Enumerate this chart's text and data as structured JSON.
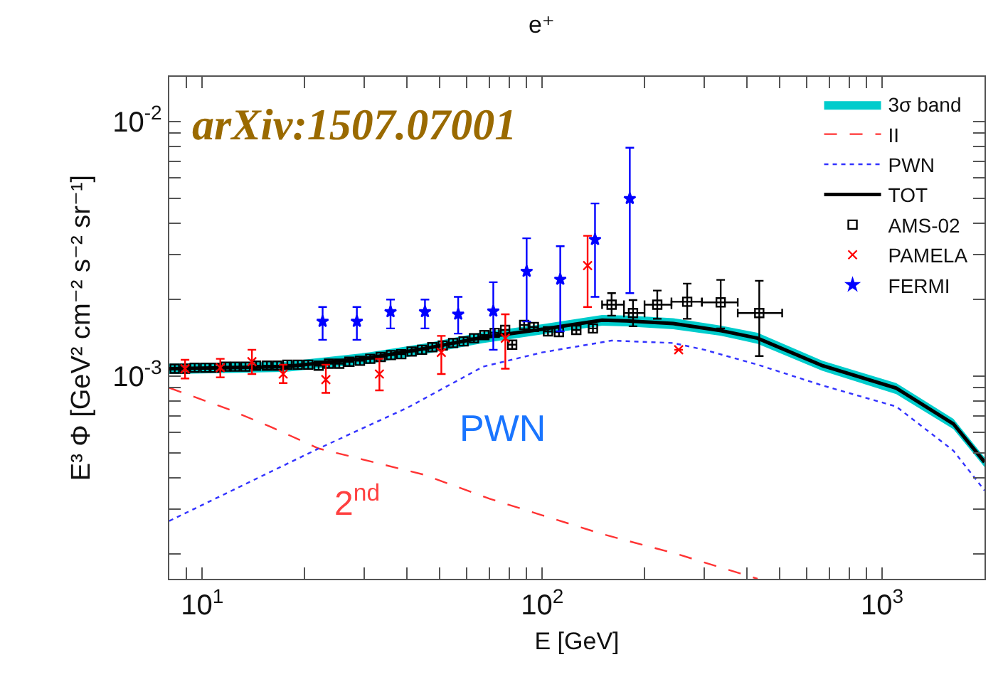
{
  "chart_data": {
    "type": "line",
    "title": "e⁺",
    "xlabel": "E [GeV]",
    "ylabel": "E³ Φ [GeV² cm⁻² s⁻² sr⁻¹]",
    "log": "xy",
    "grid": false,
    "legend": "top right",
    "xlim": [
      8,
      2000
    ],
    "xticks": [
      {
        "value": 9,
        "label": null
      },
      {
        "value": 10,
        "label": "10$^{1}$"
      },
      {
        "value": 20,
        "label": null
      },
      {
        "value": 30,
        "label": null
      },
      {
        "value": 40,
        "label": null
      },
      {
        "value": 50,
        "label": null
      },
      {
        "value": 60,
        "label": null
      },
      {
        "value": 70,
        "label": null
      },
      {
        "value": 80,
        "label": null
      },
      {
        "value": 90,
        "label": null
      },
      {
        "value": 100,
        "label": "10$^{2}$"
      },
      {
        "value": 200,
        "label": null
      },
      {
        "value": 300,
        "label": null
      },
      {
        "value": 400,
        "label": null
      },
      {
        "value": 500,
        "label": null
      },
      {
        "value": 600,
        "label": null
      },
      {
        "value": 700,
        "label": null
      },
      {
        "value": 800,
        "label": null
      },
      {
        "value": 900,
        "label": null
      },
      {
        "value": 1000,
        "label": "10$^{3}$"
      }
    ],
    "ylim": [
      0.00016,
      0.015
    ],
    "yticks": [
      {
        "value": 0.0002,
        "label": null
      },
      {
        "value": 0.0003,
        "label": null
      },
      {
        "value": 0.0004,
        "label": null
      },
      {
        "value": 0.0005,
        "label": null
      },
      {
        "value": 0.0006,
        "label": null
      },
      {
        "value": 0.0007,
        "label": null
      },
      {
        "value": 0.0008,
        "label": null
      },
      {
        "value": 0.0009,
        "label": null
      },
      {
        "value": 0.001,
        "label": "10$^{-3}$"
      },
      {
        "value": 0.002,
        "label": null
      },
      {
        "value": 0.003,
        "label": null
      },
      {
        "value": 0.004,
        "label": null
      },
      {
        "value": 0.005,
        "label": null
      },
      {
        "value": 0.006,
        "label": null
      },
      {
        "value": 0.007,
        "label": null
      },
      {
        "value": 0.008,
        "label": null
      },
      {
        "value": 0.009,
        "label": null
      },
      {
        "value": 0.01,
        "label": "10$^{-2}$"
      }
    ],
    "series": [
      {
        "name": "3σ band",
        "type": "area",
        "color": "#00cccc",
        "x": [
          8,
          17.5,
          31,
          46,
          67,
          100,
          150,
          177,
          243,
          336,
          430,
          667,
          1100,
          1620,
          2000
        ],
        "values": [
          null,
          null,
          null,
          null,
          null,
          null,
          null,
          null,
          null,
          null,
          null,
          null,
          null,
          null,
          null
        ],
        "lower": [
          0.00102,
          0.00104,
          0.00112,
          0.00123,
          0.00135,
          0.00146,
          0.00158,
          0.00157,
          0.00153,
          0.00144,
          0.00134,
          0.00105,
          0.00085,
          0.00062,
          0.00044
        ],
        "upper": [
          0.00112,
          0.00114,
          0.00124,
          0.00135,
          0.00149,
          0.0016,
          0.00174,
          0.00173,
          0.00169,
          0.00158,
          0.00148,
          0.00115,
          0.00094,
          0.00068,
          0.00048
        ]
      },
      {
        "name": "II",
        "color": "#ff3333",
        "line_style": "dashed",
        "marker": "none",
        "x": [
          8,
          12,
          16,
          22,
          28,
          45,
          70,
          150,
          250,
          430
        ],
        "values": [
          0.0009,
          0.00074,
          0.00063,
          0.00052,
          0.00048,
          0.00041,
          0.00033,
          0.00024,
          0.0002,
          0.00016
        ]
      },
      {
        "name": "PWN",
        "color": "#3333ff",
        "line_style": "dotted",
        "marker": "none",
        "x": [
          8,
          22,
          40,
          67,
          100,
          160,
          243,
          300,
          430,
          667,
          1100,
          1620,
          2000
        ],
        "values": [
          0.00027,
          0.00052,
          0.00075,
          0.00109,
          0.00124,
          0.00138,
          0.00135,
          0.00127,
          0.00111,
          0.00092,
          0.00076,
          0.00051,
          0.000356
        ]
      },
      {
        "name": "TOT",
        "color": "#000000",
        "line_style": "solid",
        "marker": "none",
        "x": [
          8,
          17.5,
          31,
          46,
          67,
          100,
          150,
          177,
          243,
          336,
          430,
          667,
          1100,
          1620,
          2000
        ],
        "values": [
          0.00107,
          0.00109,
          0.00118,
          0.00129,
          0.00142,
          0.00153,
          0.00166,
          0.00165,
          0.00161,
          0.00151,
          0.00141,
          0.0011,
          0.000898,
          0.00065,
          0.00046
        ]
      },
      {
        "name": "AMS-02",
        "type": "scatter",
        "color": "#000000",
        "marker": "square",
        "x": [
          8.3,
          8.9,
          9.5,
          10.2,
          10.9,
          11.7,
          12.5,
          13.4,
          14.4,
          15.5,
          16.6,
          17.8,
          19.1,
          20.5,
          22,
          23.6,
          25.3,
          27.1,
          29.1,
          31.2,
          33.5,
          35.9,
          38.5,
          41.3,
          44.3,
          47.5,
          51,
          54.7,
          58.7,
          63,
          67.6,
          72.5,
          77.8,
          81.6,
          88.5,
          94.5,
          104,
          112,
          126,
          141,
          160,
          185,
          218,
          267,
          335,
          435
        ],
        "values": [
          0.00107,
          0.00107,
          0.00108,
          0.00108,
          0.00108,
          0.00109,
          0.00109,
          0.00109,
          0.0011,
          0.0011,
          0.0011,
          0.00111,
          0.00111,
          0.00111,
          0.0011,
          0.00112,
          0.00112,
          0.00114,
          0.00115,
          0.00117,
          0.00119,
          0.00121,
          0.00122,
          0.00125,
          0.00127,
          0.0013,
          0.00132,
          0.00135,
          0.00137,
          0.00141,
          0.00145,
          0.00148,
          0.00152,
          0.00133,
          0.00159,
          0.00156,
          0.0015,
          0.00149,
          0.00152,
          0.00154,
          0.00191,
          0.00177,
          0.00191,
          0.00196,
          0.00195,
          0.00177
        ],
        "errors": [
          null,
          null,
          null,
          null,
          null,
          null,
          null,
          null,
          null,
          null,
          null,
          null,
          null,
          null,
          null,
          null,
          null,
          null,
          null,
          null,
          null,
          null,
          null,
          null,
          null,
          null,
          null,
          null,
          null,
          null,
          null,
          null,
          null,
          null,
          null,
          null,
          null,
          null,
          null,
          null,
          [
            0.00173,
            0.00212
          ],
          [
            0.00157,
            0.00199
          ],
          [
            0.00168,
            0.00217
          ],
          [
            0.00168,
            0.00231
          ],
          [
            0.00154,
            0.00239
          ],
          [
            0.0012,
            0.00237
          ]
        ],
        "xerrors": [
          null,
          null,
          null,
          null,
          null,
          null,
          null,
          null,
          null,
          null,
          null,
          null,
          null,
          null,
          null,
          null,
          null,
          null,
          null,
          null,
          null,
          null,
          null,
          null,
          null,
          null,
          null,
          null,
          null,
          null,
          null,
          null,
          null,
          null,
          null,
          null,
          null,
          null,
          null,
          null,
          [
            150,
            174
          ],
          [
            174,
            200
          ],
          [
            200,
            240
          ],
          [
            240,
            295
          ],
          [
            295,
            376
          ],
          [
            376,
            508
          ]
        ]
      },
      {
        "name": "PAMELA",
        "type": "scatter",
        "color": "#ff0000",
        "marker": "cross",
        "x": [
          8.9,
          11.3,
          14,
          17.3,
          23.1,
          33.2,
          50.5,
          77.9,
          136,
          252
        ],
        "values": [
          0.00107,
          0.00108,
          0.00114,
          0.00102,
          0.00097,
          0.00102,
          0.00124,
          0.00141,
          0.00272,
          0.00127
        ],
        "errors": [
          [
            0.00098,
            0.00116
          ],
          [
            0.00099,
            0.00117
          ],
          [
            0.00102,
            0.00127
          ],
          [
            0.00094,
            0.00111
          ],
          [
            0.00086,
            0.00111
          ],
          [
            0.00088,
            0.00117
          ],
          [
            0.00102,
            0.00144
          ],
          [
            0.00107,
            0.00175
          ],
          [
            0.00187,
            0.00356
          ],
          null
        ]
      },
      {
        "name": "FERMI",
        "type": "scatter",
        "color": "#0000ff",
        "marker": "star",
        "x": [
          22.6,
          28.5,
          35.8,
          45.2,
          56.6,
          71.8,
          90,
          113,
          143,
          181
        ],
        "values": [
          0.00164,
          0.00164,
          0.00179,
          0.00179,
          0.00175,
          0.0018,
          0.00258,
          0.0024,
          0.00344,
          0.00498
        ],
        "errors": [
          [
            0.00139,
            0.00187
          ],
          [
            0.00139,
            0.00187
          ],
          [
            0.00154,
            0.002
          ],
          [
            0.00154,
            0.002
          ],
          [
            0.00147,
            0.00205
          ],
          [
            0.00127,
            0.00234
          ],
          [
            0.00164,
            0.00348
          ],
          [
            0.0015,
            0.00324
          ],
          [
            0.00205,
            0.00477
          ],
          [
            0.00212,
            0.0079
          ]
        ]
      }
    ],
    "annotations": [
      "arXiv:1507.07001",
      "PWN",
      "2$^{nd}$"
    ]
  }
}
